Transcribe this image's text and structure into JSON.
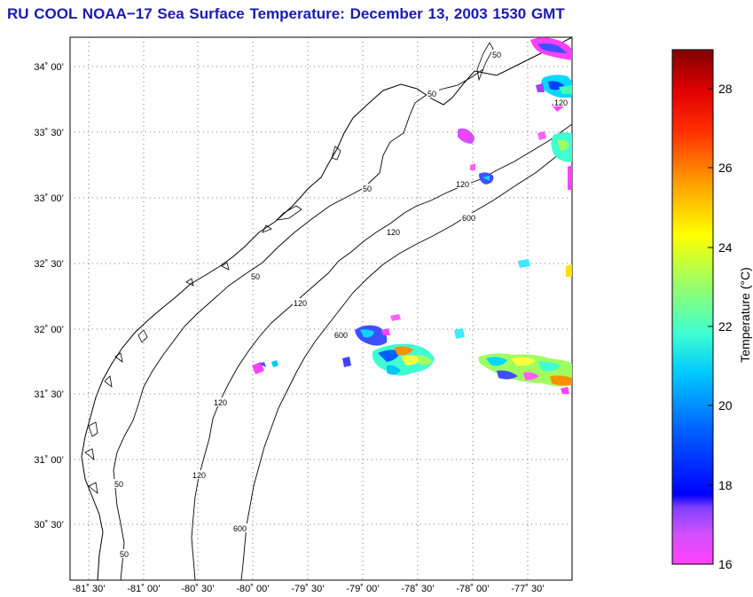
{
  "title": "RU COOL  NOAA−17  Sea Surface Temperature:  December 13, 2003 1530 GMT",
  "map": {
    "lat_ticks": [
      "34˚ 00’",
      "33˚ 30’",
      "33˚ 00’",
      "32˚ 30’",
      "32˚ 00’",
      "31˚ 30’",
      "31˚ 00’",
      "30˚ 30’"
    ],
    "lon_ticks": [
      "-81˚ 30’",
      "-81˚ 00’",
      "-80˚ 30’",
      "-80˚ 00’",
      "-79˚ 30’",
      "-79˚ 00’",
      "-78˚ 30’",
      "-78˚ 00’",
      "-77˚ 30’"
    ],
    "contour_labels": [
      "50",
      "50",
      "50",
      "50",
      "50",
      "50",
      "120",
      "120",
      "120",
      "120",
      "120",
      "120",
      "600",
      "600",
      "600"
    ]
  },
  "colorbar": {
    "label": "Temperature (°C)",
    "ticks": [
      "28",
      "26",
      "24",
      "22",
      "20",
      "18",
      "16"
    ],
    "range": [
      16,
      29
    ]
  },
  "colors": {
    "title": "#1a1ab0",
    "frame": "#000000"
  }
}
